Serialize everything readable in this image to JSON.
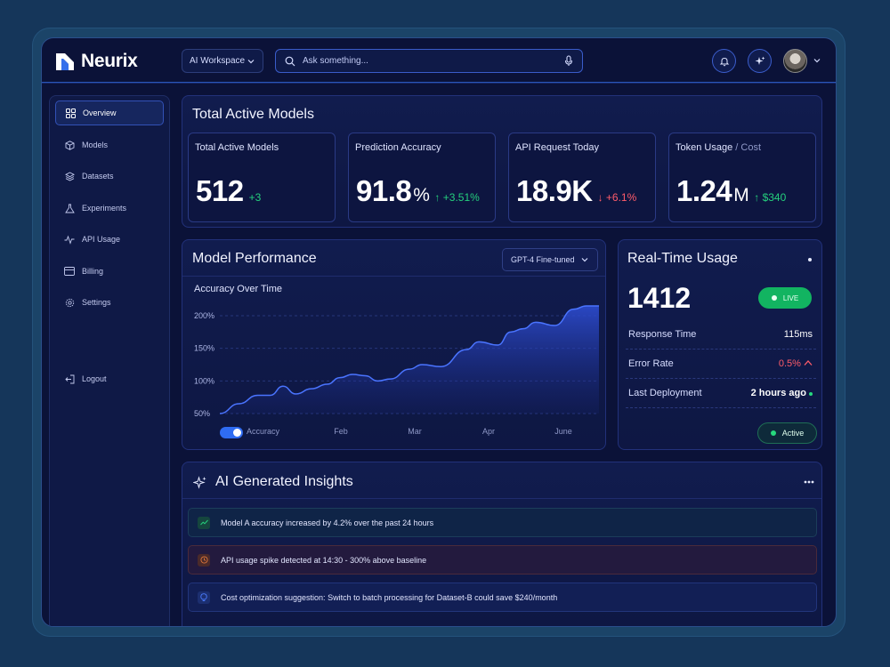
{
  "brand": {
    "name": "Neurix"
  },
  "header": {
    "workspace": "AI Workspace",
    "search_placeholder": "Ask something..."
  },
  "sidebar": {
    "items": [
      {
        "label": "Overview",
        "icon": "grid-icon",
        "active": true
      },
      {
        "label": "Models",
        "icon": "cube-icon"
      },
      {
        "label": "Datasets",
        "icon": "layers-icon"
      },
      {
        "label": "Experiments",
        "icon": "flask-icon"
      },
      {
        "label": "API Usage",
        "icon": "pulse-icon"
      },
      {
        "label": "Billing",
        "icon": "card-icon"
      },
      {
        "label": "Settings",
        "icon": "gear-icon"
      }
    ],
    "logout": "Logout"
  },
  "overview": {
    "title": "Total Active Models",
    "cards": [
      {
        "label": "Total Active Models",
        "value": "512",
        "unit": "",
        "delta": "+3",
        "trend": "up",
        "arrow": ""
      },
      {
        "label": "Prediction Accuracy",
        "value": "91.8",
        "unit": "%",
        "delta": "+3.51%",
        "trend": "up",
        "arrow": "↑"
      },
      {
        "label": "API Request Today",
        "value": "18.9K",
        "unit": "",
        "delta": "+6.1%",
        "trend": "down",
        "arrow": "↓"
      },
      {
        "label": "Token Usage",
        "label_muted": " / Cost",
        "value": "1.24",
        "unit": "M",
        "delta": "$340",
        "trend": "up",
        "arrow": "↑"
      }
    ]
  },
  "performance": {
    "title": "Model Performance",
    "model_select": "GPT-4 Fine-tuned",
    "toggle_label": "Accuracy"
  },
  "chart_data": {
    "type": "area",
    "title": "Accuracy Over Time",
    "categories": [
      "Feb",
      "Mar",
      "Apr",
      "June"
    ],
    "y_ticks": [
      "200%",
      "150%",
      "100%",
      "50%"
    ],
    "ylim": [
      50,
      200
    ],
    "x": [
      0,
      0.3,
      0.6,
      0.8,
      1.0,
      1.2,
      1.45,
      1.7,
      1.9,
      2.1,
      2.3,
      2.5,
      2.7,
      3.0,
      3.2,
      3.5,
      3.9,
      4.1,
      4.4,
      4.6,
      4.8,
      5.0,
      5.3,
      5.6,
      5.8,
      6.0
    ],
    "values": [
      50,
      65,
      78,
      78,
      92,
      80,
      88,
      95,
      105,
      110,
      108,
      100,
      103,
      118,
      125,
      122,
      148,
      160,
      155,
      175,
      180,
      190,
      185,
      210,
      215,
      215
    ],
    "grid": true
  },
  "realtime": {
    "title": "Real-Time Usage",
    "count": "1412",
    "live_label": "LIVE",
    "rows": [
      {
        "label": "Response Time",
        "value": "115ms",
        "status": "normal"
      },
      {
        "label": "Error Rate",
        "value": "0.5%",
        "status": "bad"
      },
      {
        "label": "Last Deployment",
        "value": "2 hours ago",
        "status": "good"
      }
    ],
    "status_label": "Active"
  },
  "insights": {
    "title": "AI Generated Insights",
    "items": [
      {
        "text": "Model A accuracy increased by 4.2% over the past 24 hours",
        "kind": "trend",
        "color": "#25d07d"
      },
      {
        "text": "API usage spike detected at 14:30 - 300% above baseline",
        "kind": "alert",
        "color": "#e0773a"
      },
      {
        "text": "Cost optimization suggestion: Switch to batch processing for Dataset-B could save $240/month",
        "kind": "idea",
        "color": "#4c7cff"
      }
    ]
  }
}
